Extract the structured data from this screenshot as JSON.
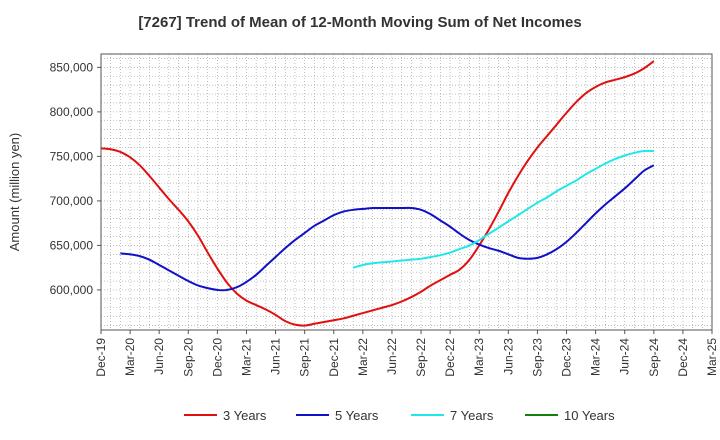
{
  "chart_data": {
    "type": "line",
    "title": "[7267]  Trend of Mean of 12-Month Moving Sum of Net Incomes",
    "ylabel": "Amount (million yen)",
    "xlabel": "",
    "x_ticks": [
      "Dec-19",
      "Mar-20",
      "Jun-20",
      "Sep-20",
      "Dec-20",
      "Mar-21",
      "Jun-21",
      "Sep-21",
      "Dec-21",
      "Mar-22",
      "Jun-22",
      "Sep-22",
      "Dec-22",
      "Mar-23",
      "Jun-23",
      "Sep-23",
      "Dec-23",
      "Mar-24",
      "Jun-24",
      "Sep-24",
      "Dec-24",
      "Mar-25"
    ],
    "x_range": [
      "2019-12",
      "2025-03"
    ],
    "y_ticks": [
      600000,
      650000,
      700000,
      750000,
      800000,
      850000
    ],
    "y_tick_labels": [
      "600,000",
      "650,000",
      "700,000",
      "750,000",
      "800,000",
      "850,000"
    ],
    "ylim": [
      555000,
      865000
    ],
    "grid": true,
    "legend_position": "bottom",
    "series": [
      {
        "name": "3 Years",
        "color": "#e01010",
        "points": [
          [
            "2019-12",
            759000
          ],
          [
            "2020-01",
            758000
          ],
          [
            "2020-02",
            755000
          ],
          [
            "2020-03",
            749000
          ],
          [
            "2020-04",
            740000
          ],
          [
            "2020-05",
            728000
          ],
          [
            "2020-06",
            715000
          ],
          [
            "2020-07",
            702000
          ],
          [
            "2020-08",
            690000
          ],
          [
            "2020-09",
            677000
          ],
          [
            "2020-10",
            661000
          ],
          [
            "2020-11",
            642000
          ],
          [
            "2020-12",
            624000
          ],
          [
            "2021-01",
            608000
          ],
          [
            "2021-02",
            596000
          ],
          [
            "2021-03",
            588000
          ],
          [
            "2021-04",
            583000
          ],
          [
            "2021-05",
            578000
          ],
          [
            "2021-06",
            572000
          ],
          [
            "2021-07",
            565000
          ],
          [
            "2021-08",
            561000
          ],
          [
            "2021-09",
            560000
          ],
          [
            "2021-10",
            562000
          ],
          [
            "2021-11",
            564000
          ],
          [
            "2021-12",
            566000
          ],
          [
            "2022-01",
            568000
          ],
          [
            "2022-02",
            571000
          ],
          [
            "2022-03",
            574000
          ],
          [
            "2022-04",
            577000
          ],
          [
            "2022-05",
            580000
          ],
          [
            "2022-06",
            583000
          ],
          [
            "2022-07",
            587000
          ],
          [
            "2022-08",
            592000
          ],
          [
            "2022-09",
            598000
          ],
          [
            "2022-10",
            605000
          ],
          [
            "2022-11",
            611000
          ],
          [
            "2022-12",
            617000
          ],
          [
            "2023-01",
            623000
          ],
          [
            "2023-02",
            634000
          ],
          [
            "2023-03",
            650000
          ],
          [
            "2023-04",
            668000
          ],
          [
            "2023-05",
            688000
          ],
          [
            "2023-06",
            709000
          ],
          [
            "2023-07",
            728000
          ],
          [
            "2023-08",
            745000
          ],
          [
            "2023-09",
            760000
          ],
          [
            "2023-10",
            773000
          ],
          [
            "2023-11",
            786000
          ],
          [
            "2023-12",
            799000
          ],
          [
            "2024-01",
            811000
          ],
          [
            "2024-02",
            821000
          ],
          [
            "2024-03",
            828000
          ],
          [
            "2024-04",
            833000
          ],
          [
            "2024-05",
            836000
          ],
          [
            "2024-06",
            839000
          ],
          [
            "2024-07",
            843000
          ],
          [
            "2024-08",
            849000
          ],
          [
            "2024-09",
            857000
          ]
        ]
      },
      {
        "name": "5 Years",
        "color": "#1010c8",
        "points": [
          [
            "2020-02",
            641000
          ],
          [
            "2020-03",
            640000
          ],
          [
            "2020-04",
            638000
          ],
          [
            "2020-05",
            634000
          ],
          [
            "2020-06",
            628000
          ],
          [
            "2020-07",
            622000
          ],
          [
            "2020-08",
            616000
          ],
          [
            "2020-09",
            610000
          ],
          [
            "2020-10",
            605000
          ],
          [
            "2020-11",
            602000
          ],
          [
            "2020-12",
            600000
          ],
          [
            "2021-01",
            600000
          ],
          [
            "2021-02",
            603000
          ],
          [
            "2021-03",
            609000
          ],
          [
            "2021-04",
            617000
          ],
          [
            "2021-05",
            627000
          ],
          [
            "2021-06",
            637000
          ],
          [
            "2021-07",
            647000
          ],
          [
            "2021-08",
            656000
          ],
          [
            "2021-09",
            664000
          ],
          [
            "2021-10",
            672000
          ],
          [
            "2021-11",
            678000
          ],
          [
            "2021-12",
            684000
          ],
          [
            "2022-01",
            688000
          ],
          [
            "2022-02",
            690000
          ],
          [
            "2022-03",
            691000
          ],
          [
            "2022-04",
            692000
          ],
          [
            "2022-05",
            692000
          ],
          [
            "2022-06",
            692000
          ],
          [
            "2022-07",
            692000
          ],
          [
            "2022-08",
            692000
          ],
          [
            "2022-09",
            690000
          ],
          [
            "2022-10",
            685000
          ],
          [
            "2022-11",
            678000
          ],
          [
            "2022-12",
            671000
          ],
          [
            "2023-01",
            663000
          ],
          [
            "2023-02",
            656000
          ],
          [
            "2023-03",
            651000
          ],
          [
            "2023-04",
            647000
          ],
          [
            "2023-05",
            644000
          ],
          [
            "2023-06",
            640000
          ],
          [
            "2023-07",
            636000
          ],
          [
            "2023-08",
            635000
          ],
          [
            "2023-09",
            636000
          ],
          [
            "2023-10",
            640000
          ],
          [
            "2023-11",
            646000
          ],
          [
            "2023-12",
            654000
          ],
          [
            "2024-01",
            664000
          ],
          [
            "2024-02",
            675000
          ],
          [
            "2024-03",
            686000
          ],
          [
            "2024-04",
            696000
          ],
          [
            "2024-05",
            705000
          ],
          [
            "2024-06",
            714000
          ],
          [
            "2024-07",
            724000
          ],
          [
            "2024-08",
            734000
          ],
          [
            "2024-09",
            740000
          ]
        ]
      },
      {
        "name": "7 Years",
        "color": "#20e8e8",
        "points": [
          [
            "2022-02",
            625000
          ],
          [
            "2022-03",
            628000
          ],
          [
            "2022-04",
            630000
          ],
          [
            "2022-05",
            631000
          ],
          [
            "2022-06",
            632000
          ],
          [
            "2022-07",
            633000
          ],
          [
            "2022-08",
            634000
          ],
          [
            "2022-09",
            635000
          ],
          [
            "2022-10",
            637000
          ],
          [
            "2022-11",
            639000
          ],
          [
            "2022-12",
            642000
          ],
          [
            "2023-01",
            646000
          ],
          [
            "2023-02",
            650000
          ],
          [
            "2023-03",
            656000
          ],
          [
            "2023-04",
            663000
          ],
          [
            "2023-05",
            670000
          ],
          [
            "2023-06",
            677000
          ],
          [
            "2023-07",
            684000
          ],
          [
            "2023-08",
            691000
          ],
          [
            "2023-09",
            698000
          ],
          [
            "2023-10",
            704000
          ],
          [
            "2023-11",
            711000
          ],
          [
            "2023-12",
            717000
          ],
          [
            "2024-01",
            723000
          ],
          [
            "2024-02",
            730000
          ],
          [
            "2024-03",
            736000
          ],
          [
            "2024-04",
            742000
          ],
          [
            "2024-05",
            747000
          ],
          [
            "2024-06",
            751000
          ],
          [
            "2024-07",
            754000
          ],
          [
            "2024-08",
            756000
          ],
          [
            "2024-09",
            756000
          ]
        ]
      },
      {
        "name": "10 Years",
        "color": "#108010",
        "points": []
      }
    ]
  }
}
